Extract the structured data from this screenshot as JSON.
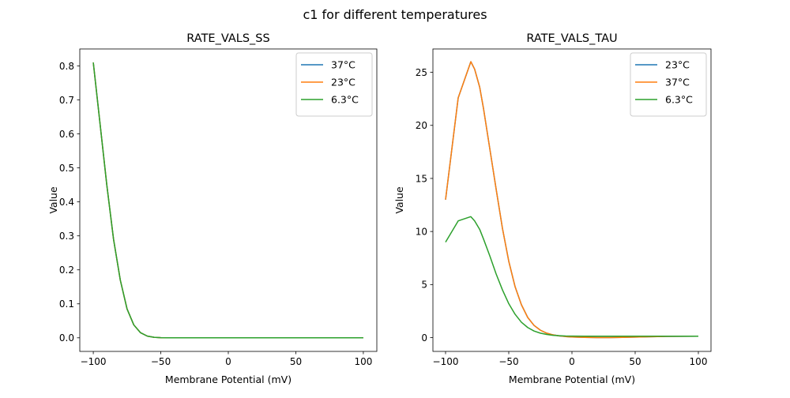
{
  "figure_title": "c1 for different temperatures",
  "chart_data": [
    {
      "type": "line",
      "title": "RATE_VALS_SS",
      "xlabel": "Membrane Potential (mV)",
      "ylabel": "Value",
      "xlim": [
        -110,
        110
      ],
      "ylim": [
        -0.04,
        0.85
      ],
      "xticks": [
        -100,
        -50,
        0,
        50,
        100
      ],
      "xtick_labels": [
        "−100",
        "−50",
        "0",
        "50",
        "100"
      ],
      "yticks": [
        0.0,
        0.1,
        0.2,
        0.3,
        0.4,
        0.5,
        0.6,
        0.7,
        0.8
      ],
      "ytick_labels": [
        "0.0",
        "0.1",
        "0.2",
        "0.3",
        "0.4",
        "0.5",
        "0.6",
        "0.7",
        "0.8"
      ],
      "grid": false,
      "legend_position": "top-right",
      "x": [
        -100,
        -95,
        -90,
        -85,
        -80,
        -75,
        -70,
        -65,
        -60,
        -55,
        -50,
        -45,
        -40,
        -30,
        -20,
        -10,
        0,
        25,
        50,
        75,
        100
      ],
      "series": [
        {
          "name": "37°C",
          "color": "#1f77b4",
          "values": [
            0.81,
            0.63,
            0.45,
            0.29,
            0.17,
            0.085,
            0.038,
            0.015,
            0.005,
            0.0015,
            0.0005,
            0.0002,
            0.0001,
            0,
            0,
            0,
            0,
            0,
            0,
            0,
            0
          ]
        },
        {
          "name": "23°C",
          "color": "#ff7f0e",
          "values": [
            0.81,
            0.63,
            0.45,
            0.29,
            0.17,
            0.085,
            0.038,
            0.015,
            0.005,
            0.0015,
            0.0005,
            0.0002,
            0.0001,
            0,
            0,
            0,
            0,
            0,
            0,
            0,
            0
          ]
        },
        {
          "name": "6.3°C",
          "color": "#2ca02c",
          "values": [
            0.81,
            0.63,
            0.45,
            0.29,
            0.17,
            0.085,
            0.038,
            0.015,
            0.005,
            0.0015,
            0.0005,
            0.0002,
            0.0001,
            0,
            0,
            0,
            0,
            0,
            0,
            0,
            0
          ]
        }
      ]
    },
    {
      "type": "line",
      "title": "RATE_VALS_TAU",
      "xlabel": "Membrane Potential (mV)",
      "ylabel": "Value",
      "xlim": [
        -110,
        110
      ],
      "ylim": [
        -1.3,
        27.2
      ],
      "xticks": [
        -100,
        -50,
        0,
        50,
        100
      ],
      "xtick_labels": [
        "−100",
        "−50",
        "0",
        "50",
        "100"
      ],
      "yticks": [
        0,
        5,
        10,
        15,
        20,
        25
      ],
      "ytick_labels": [
        "0",
        "5",
        "10",
        "15",
        "20",
        "25"
      ],
      "grid": false,
      "legend_position": "top-right",
      "x": [
        -100,
        -90,
        -80,
        -77,
        -73,
        -70,
        -65,
        -60,
        -55,
        -50,
        -45,
        -40,
        -35,
        -30,
        -25,
        -20,
        -15,
        -10,
        -5,
        0,
        10,
        20,
        30,
        40,
        50,
        60,
        75,
        100
      ],
      "series": [
        {
          "name": "23°C",
          "color": "#1f77b4",
          "values": [
            13.0,
            22.6,
            26.0,
            25.3,
            23.6,
            21.6,
            17.8,
            14.0,
            10.3,
            7.2,
            4.8,
            3.1,
            1.9,
            1.15,
            0.7,
            0.42,
            0.26,
            0.16,
            0.1,
            0.06,
            0.02,
            0.0,
            0.0,
            0.02,
            0.05,
            0.08,
            0.11,
            0.13
          ]
        },
        {
          "name": "37°C",
          "color": "#ff7f0e",
          "values": [
            13.0,
            22.6,
            26.0,
            25.3,
            23.6,
            21.6,
            17.8,
            14.0,
            10.3,
            7.2,
            4.8,
            3.1,
            1.9,
            1.15,
            0.7,
            0.42,
            0.26,
            0.16,
            0.1,
            0.06,
            0.02,
            0.0,
            0.0,
            0.02,
            0.05,
            0.08,
            0.11,
            0.13
          ]
        },
        {
          "name": "6.3°C",
          "color": "#2ca02c",
          "values": [
            9.0,
            11.0,
            11.4,
            11.0,
            10.2,
            9.3,
            7.7,
            6.0,
            4.5,
            3.2,
            2.2,
            1.45,
            0.95,
            0.62,
            0.42,
            0.3,
            0.22,
            0.18,
            0.15,
            0.14,
            0.13,
            0.13,
            0.13,
            0.13,
            0.13,
            0.13,
            0.13,
            0.13
          ]
        }
      ]
    }
  ]
}
